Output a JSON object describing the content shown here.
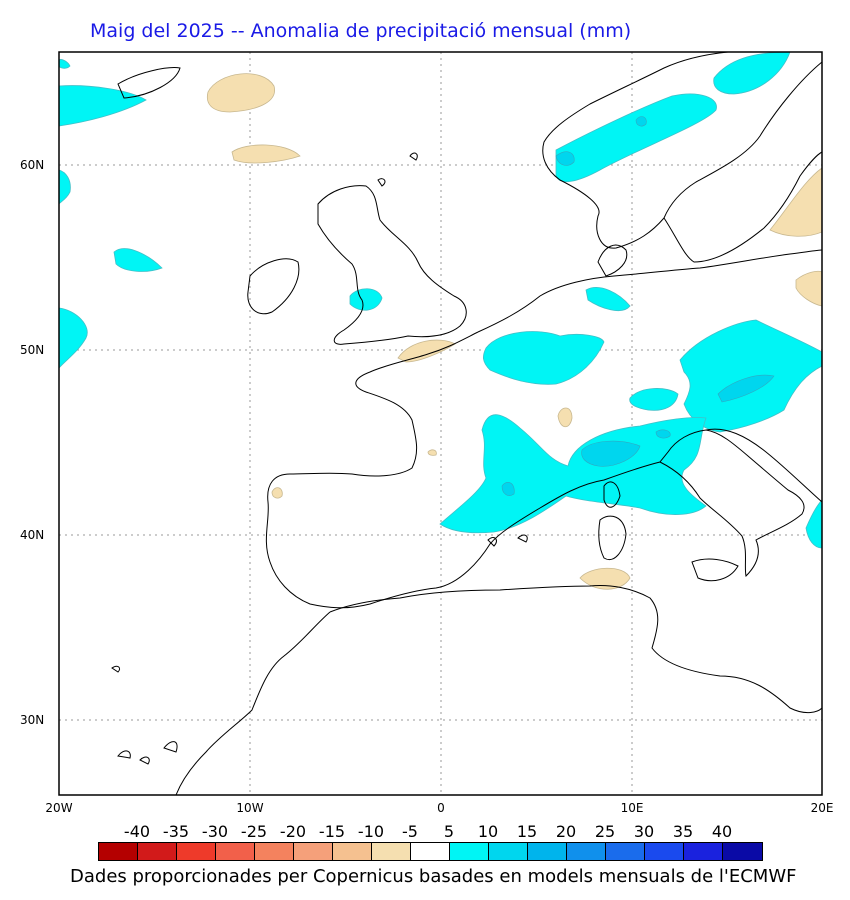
{
  "title": "Maig del 2025 -- Anomalia de precipitació mensual (mm)",
  "lat_labels": [
    "60N",
    "50N",
    "40N",
    "30N"
  ],
  "lon_labels": [
    "20W",
    "10W",
    "0",
    "10E",
    "20E"
  ],
  "colorbar": {
    "labels": [
      "-40",
      "-35",
      "-30",
      "-25",
      "-20",
      "-15",
      "-10",
      "-5",
      "5",
      "10",
      "15",
      "20",
      "25",
      "30",
      "35",
      "40"
    ],
    "colors": [
      "#b40000",
      "#d21a1a",
      "#ee3a2a",
      "#f2604a",
      "#f4825e",
      "#f5a07a",
      "#f5c190",
      "#f5dfb0",
      "#ffffff",
      "#00f5f5",
      "#00d6ee",
      "#00b4ec",
      "#1090ec",
      "#1a6cec",
      "#1a4aee",
      "#1a22de",
      "#0a0aa6"
    ]
  },
  "footer": "Dades proporcionades per Copernicus basades en models mensuals de l'ECMWF",
  "colors": {
    "positive_anomaly": "#00f5f5",
    "negative_anomaly": "#f5dfb0",
    "title": "#1a1ae6"
  }
}
